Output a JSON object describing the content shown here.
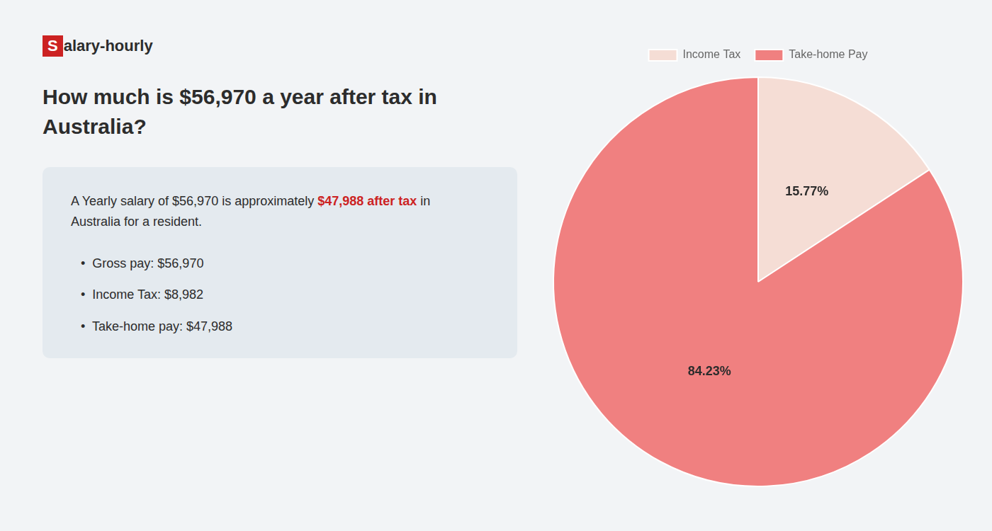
{
  "chart_data": {
    "type": "pie",
    "title": "How much is $56,970 a year after tax in\nAustralia?",
    "categories": [
      "Income Tax",
      "Take-home Pay"
    ],
    "values": [
      15.77,
      84.23
    ],
    "value_labels": [
      "15.77%",
      "84.23%"
    ],
    "colors": [
      "#f5ddd5",
      "#f08080"
    ],
    "data_labels": true,
    "legend": "top",
    "annotations": [
      [
        {
          "text": "S",
          "color": "#cc2222"
        },
        {
          "text": "alary-hourly"
        }
      ],
      [
        {
          "text": "A Yearly salary of $56,970 is approximately "
        },
        {
          "text": "$47,988 after tax",
          "color": "#cc2222"
        },
        {
          "text": " in"
        }
      ],
      [
        {
          "text": "Australia for a resident."
        }
      ],
      [
        {
          "text": "•  Gross pay: $56,970"
        }
      ],
      [
        {
          "text": "•  Income Tax: $8,982"
        }
      ],
      [
        {
          "text": "•  Take-home pay: $47,988"
        }
      ]
    ]
  }
}
